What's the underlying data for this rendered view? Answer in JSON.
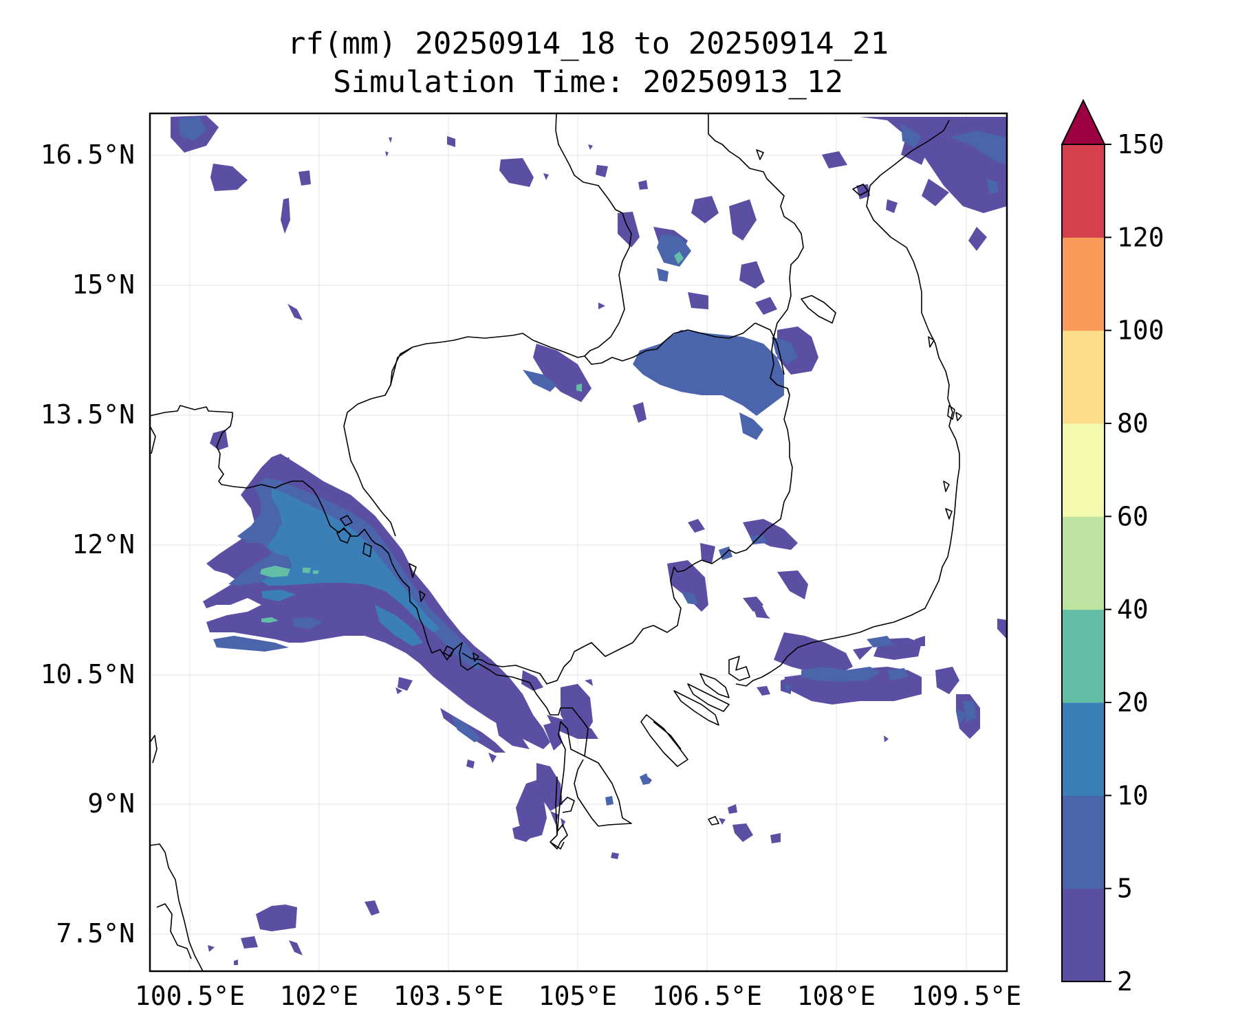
{
  "title": {
    "line1": "rf(mm) 20250914_18 to 20250914_21",
    "line2": "Simulation Time: 20250913_12"
  },
  "axes": {
    "lon_ticks": [
      "100.5°E",
      "102°E",
      "103.5°E",
      "105°E",
      "106.5°E",
      "108°E",
      "109.5°E"
    ],
    "lat_ticks": [
      "16.5°N",
      "15°N",
      "13.5°N",
      "12°N",
      "10.5°N",
      "9°N",
      "7.5°N"
    ]
  },
  "colorbar": {
    "levels": [
      "2",
      "5",
      "10",
      "20",
      "40",
      "60",
      "80",
      "100",
      "120",
      "150"
    ],
    "colors": [
      "#5a4fa2",
      "#4b65ad",
      "#3a7fb8",
      "#62bfa6",
      "#bde3a0",
      "#f3f9ad",
      "#fbdd8a",
      "#f89b5b",
      "#d53f4e"
    ],
    "extend_color": "#9e0142"
  },
  "map": {
    "region": "Cambodia / southern Vietnam",
    "grid": true
  }
}
